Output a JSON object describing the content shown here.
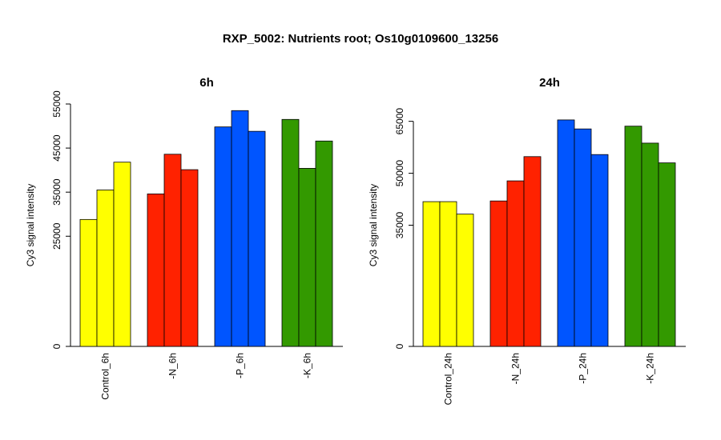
{
  "title": "RXP_5002: Nutrients root; Os10g0109600_13256",
  "chart_data": [
    {
      "type": "bar",
      "title": "6h",
      "ylabel": "Cy3 signal intensity",
      "xlabel": "",
      "ylim": [
        0,
        55000
      ],
      "yticks": [
        0,
        25000,
        35000,
        45000,
        55000
      ],
      "ytick_labels": [
        "0",
        "25000",
        "35000",
        "45000",
        "55000"
      ],
      "categories": [
        "Control_6h",
        "-N_6h",
        "-P_6h",
        "-K_6h"
      ],
      "group_colors": [
        "#ffff00",
        "#ff2200",
        "#0055ff",
        "#339900"
      ],
      "values": [
        [
          28800,
          35500,
          41800
        ],
        [
          34600,
          43600,
          40100
        ],
        [
          49800,
          53500,
          48800
        ],
        [
          51500,
          40400,
          46600
        ]
      ],
      "grid": false
    },
    {
      "type": "bar",
      "title": "24h",
      "ylabel": "Cy3 signal intensity",
      "xlabel": "",
      "ylim": [
        0,
        70000
      ],
      "yticks": [
        0,
        35000,
        50000,
        65000
      ],
      "ytick_labels": [
        "0",
        "35000",
        "50000",
        "65000"
      ],
      "categories": [
        "Control_24h",
        "-N_24h",
        "-P_24h",
        "-K_24h"
      ],
      "group_colors": [
        "#ffff00",
        "#ff2200",
        "#0055ff",
        "#339900"
      ],
      "values": [
        [
          41800,
          41800,
          38200
        ],
        [
          42000,
          47800,
          54800
        ],
        [
          65400,
          62800,
          55400
        ],
        [
          63600,
          58700,
          53000
        ]
      ],
      "grid": false
    }
  ]
}
